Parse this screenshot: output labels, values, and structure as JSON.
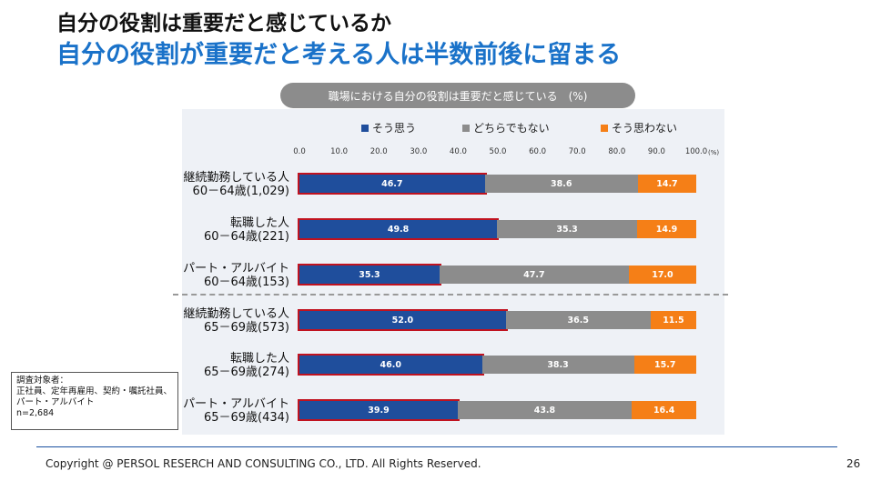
{
  "header": {
    "title": "自分の役割は重要だと感じているか",
    "subtitle": "自分の役割が重要だと考える人は半数前後に留まる"
  },
  "chart_data": {
    "type": "bar",
    "orientation": "horizontal-stacked-100",
    "title": "職場における自分の役割は重要だと感じている　(%)",
    "xlim": [
      0,
      100
    ],
    "tick_labels": [
      "0.0",
      "10.0",
      "20.0",
      "30.0",
      "40.0",
      "50.0",
      "60.0",
      "70.0",
      "80.0",
      "90.0",
      "100.0"
    ],
    "unit_label": "(%)",
    "legend_position": "top",
    "categories": [
      [
        "継続勤務している人",
        "60－64歳(1,029)"
      ],
      [
        "転職した人",
        "60－64歳(221)"
      ],
      [
        "パート・アルバイト",
        "60－64歳(153)"
      ],
      [
        "継続勤務している人",
        "65－69歳(573)"
      ],
      [
        "転職した人",
        "65－69歳(274)"
      ],
      [
        "パート・アルバイト",
        "65－69歳(434)"
      ]
    ],
    "series": [
      {
        "name": "そう思う",
        "color": "#1f4e9c",
        "values": [
          46.7,
          49.8,
          35.3,
          52.0,
          46.0,
          39.9
        ],
        "labels": [
          "46.7",
          "49.8",
          "35.3",
          "52.0",
          "46.0",
          "39.9"
        ]
      },
      {
        "name": "どちらでもない",
        "color": "#8c8c8c",
        "values": [
          38.6,
          35.3,
          47.7,
          36.5,
          38.3,
          43.8
        ],
        "labels": [
          "38.6",
          "35.3",
          "47.7",
          "36.5",
          "38.3",
          "43.8"
        ]
      },
      {
        "name": "そう思わない",
        "color": "#f57f17",
        "values": [
          14.7,
          14.9,
          17.0,
          11.5,
          15.7,
          16.4
        ],
        "labels": [
          "14.7",
          "14.9",
          "17.0",
          "11.5",
          "15.7",
          "16.4"
        ]
      }
    ],
    "highlight_color": "#c0121f"
  },
  "note": {
    "lines": [
      "調査対象者：",
      "正社員、定年再雇用、契約・嘱託社員、",
      "パート・アルバイト",
      "n=2,684"
    ]
  },
  "footer": {
    "copyright": "Copyright @ PERSOL RESERCH AND CONSULTING CO., LTD. All Rights Reserved.",
    "page": "26"
  }
}
